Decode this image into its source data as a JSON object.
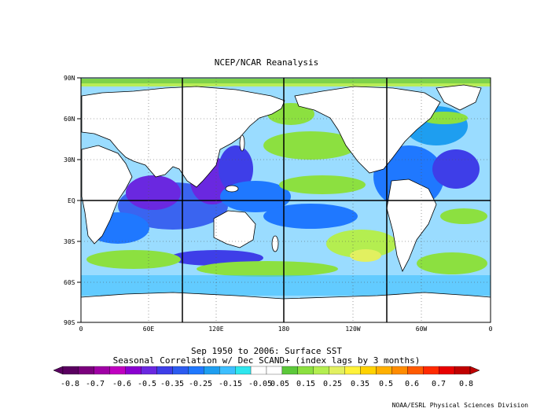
{
  "title": "NCEP/NCAR Reanalysis",
  "lat_labels": [
    "90N",
    "60N",
    "30N",
    "EQ",
    "30S",
    "60S",
    "90S"
  ],
  "lon_labels": [
    "0",
    "60E",
    "120E",
    "180",
    "120W",
    "60W",
    "0"
  ],
  "caption_line1": "Sep 1950 to 2006: Surface SST",
  "caption_line2": "Seasonal Correlation w/ Dec SCAND+ (index lags by 3 months)",
  "colorbar": {
    "labels": [
      "-0.8",
      "-0.7",
      "-0.6",
      "-0.5",
      "-0.35",
      "-0.25",
      "-0.15",
      "-0.05",
      "0.05",
      "0.15",
      "0.25",
      "0.35",
      "0.5",
      "0.6",
      "0.7",
      "0.8"
    ],
    "colors": [
      "#5a0060",
      "#7b007d",
      "#a000a5",
      "#c000c0",
      "#8a00d0",
      "#6a28e0",
      "#3e3ee8",
      "#2c5bf0",
      "#1f78ff",
      "#1e9ef0",
      "#3dbfff",
      "#2ee6ee",
      "#ffffff",
      "#ffffff",
      "#5cc83a",
      "#8ce040",
      "#b4ee50",
      "#e2f060",
      "#fff23a",
      "#ffd200",
      "#ffb000",
      "#ff8c00",
      "#ff5a00",
      "#ff2a00",
      "#e80000",
      "#c00000"
    ]
  },
  "credit": "NOAA/ESRL Physical Sciences Division"
}
